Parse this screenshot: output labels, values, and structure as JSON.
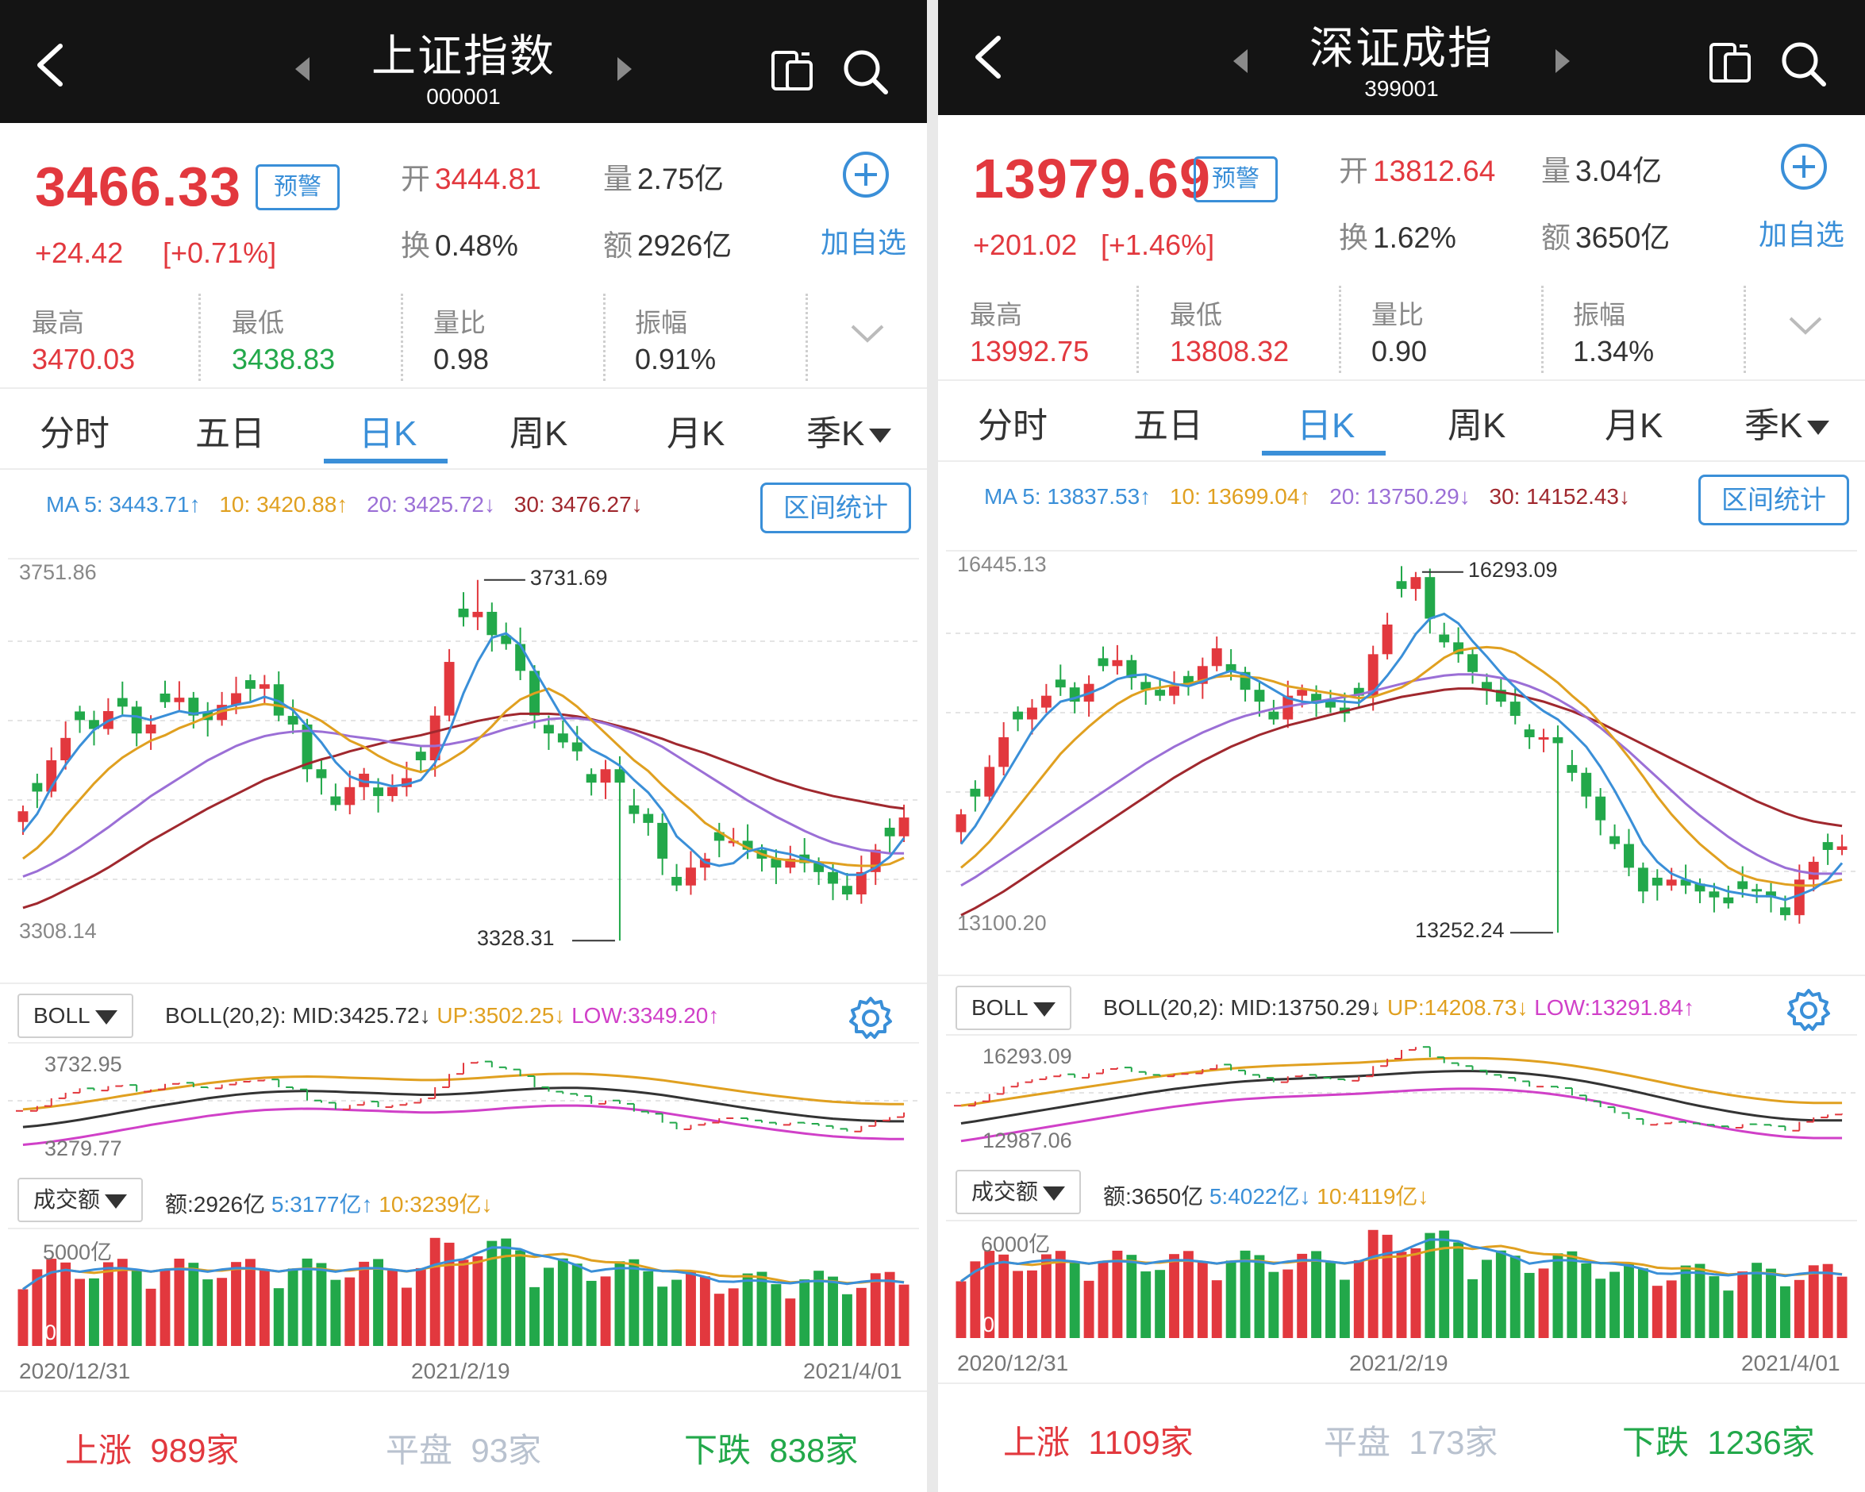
{
  "colors": {
    "up": "#e2383e",
    "down": "#22a84a",
    "accent": "#3a8fd8",
    "ma5": "#3a8fd8",
    "ma10": "#e0a020",
    "ma20": "#9b6fd6",
    "ma30": "#a0282e",
    "boll_mid": "#333333",
    "boll_up": "#e0a020",
    "boll_low": "#d040c8"
  },
  "panels": [
    {
      "title": "上证指数",
      "code": "000001",
      "price": "3466.33",
      "warn": "预警",
      "change": "+24.42",
      "change_pct": "[+0.71%]",
      "open_k": "开",
      "open_v": "3444.81",
      "vol_k": "量",
      "vol_v": "2.75亿",
      "turn_k": "换",
      "turn_v": "0.48%",
      "amt_k": "额",
      "amt_v": "2926亿",
      "add_label": "加自选",
      "stats": [
        {
          "k": "最高",
          "v": "3470.03",
          "c": "up"
        },
        {
          "k": "最低",
          "v": "3438.83",
          "c": "down"
        },
        {
          "k": "量比",
          "v": "0.98",
          "c": "n"
        },
        {
          "k": "振幅",
          "v": "0.91%",
          "c": "n"
        }
      ],
      "tabs": [
        "分时",
        "五日",
        "日K",
        "周K",
        "月K",
        "季K"
      ],
      "active_tab": 2,
      "ma": [
        "MA 5: 3443.71↑",
        "10: 3420.88↑",
        "20: 3425.72↓",
        "30: 3476.27↓"
      ],
      "range_btn": "区间统计",
      "y_top": "3751.86",
      "y_bottom": "3308.14",
      "high_label": "3731.69",
      "low_label": "3328.31",
      "boll_select": "BOLL",
      "boll_name": "BOLL(20,2):",
      "boll_mid": "MID:3425.72↓",
      "boll_up": "UP:3502.25↓",
      "boll_low": "LOW:3349.20↑",
      "boll_y_top": "3732.95",
      "boll_y_bottom": "3279.77",
      "vol_select": "成交额",
      "vol_amt": "额:2926亿",
      "vol_5": "5:3177亿↑",
      "vol_10": "10:3239亿↓",
      "vol_y_top": "5000亿",
      "vol_y_bottom": "0",
      "dates": [
        "2020/12/31",
        "2021/2/19",
        "2021/4/01"
      ],
      "up_label": "上涨",
      "up_count": "989家",
      "flat_label": "平盘",
      "flat_count": "93家",
      "down_label": "下跌",
      "down_count": "838家",
      "chart_data": {
        "type": "candlestick",
        "ylim": [
          3308.14,
          3751.86
        ],
        "high_mark": 3731.69,
        "low_mark": 3328.31,
        "closes": [
          3473,
          3495,
          3530,
          3555,
          3575,
          3565,
          3585,
          3590,
          3560,
          3570,
          3595,
          3600,
          3580,
          3575,
          3592,
          3605,
          3610,
          3615,
          3580,
          3570,
          3520,
          3510,
          3480,
          3500,
          3515,
          3490,
          3500,
          3510,
          3530,
          3580,
          3640,
          3690,
          3696,
          3670,
          3660,
          3630,
          3580,
          3560,
          3550,
          3540,
          3505,
          3520,
          3505,
          3470,
          3460,
          3420,
          3390,
          3410,
          3420,
          3440,
          3440,
          3430,
          3420,
          3410,
          3420,
          3415,
          3405,
          3392,
          3380,
          3405,
          3430,
          3445,
          3466
        ],
        "ma5": [
          3450,
          3470,
          3500,
          3525,
          3546,
          3564,
          3574,
          3580,
          3579,
          3575,
          3580,
          3585,
          3582,
          3584,
          3588,
          3592,
          3595,
          3601,
          3596,
          3586,
          3568,
          3550,
          3528,
          3512,
          3506,
          3505,
          3501,
          3503,
          3508,
          3527,
          3562,
          3605,
          3640,
          3667,
          3672,
          3659,
          3631,
          3604,
          3577,
          3557,
          3542,
          3534,
          3524,
          3508,
          3494,
          3474,
          3445,
          3431,
          3416,
          3412,
          3415,
          3428,
          3432,
          3428,
          3425,
          3420,
          3415,
          3408,
          3402,
          3402,
          3410,
          3422,
          3443
        ],
        "ma10": [
          3420,
          3432,
          3448,
          3468,
          3486,
          3504,
          3520,
          3533,
          3543,
          3552,
          3558,
          3566,
          3572,
          3579,
          3585,
          3588,
          3590,
          3593,
          3591,
          3588,
          3582,
          3574,
          3563,
          3552,
          3545,
          3535,
          3527,
          3521,
          3517,
          3521,
          3530,
          3540,
          3553,
          3568,
          3585,
          3598,
          3605,
          3610,
          3602,
          3590,
          3575,
          3560,
          3545,
          3530,
          3518,
          3502,
          3488,
          3475,
          3460,
          3450,
          3440,
          3432,
          3425,
          3420,
          3418,
          3417,
          3416,
          3415,
          3413,
          3412,
          3412,
          3414,
          3421
        ],
        "ma20": [
          3400,
          3406,
          3414,
          3423,
          3433,
          3444,
          3455,
          3467,
          3478,
          3490,
          3500,
          3510,
          3520,
          3530,
          3538,
          3546,
          3552,
          3557,
          3560,
          3562,
          3563,
          3562,
          3560,
          3557,
          3555,
          3553,
          3550,
          3548,
          3546,
          3546,
          3548,
          3551,
          3555,
          3560,
          3565,
          3569,
          3573,
          3576,
          3577,
          3577,
          3575,
          3571,
          3566,
          3560,
          3553,
          3545,
          3535,
          3525,
          3515,
          3505,
          3495,
          3485,
          3476,
          3467,
          3459,
          3451,
          3444,
          3438,
          3434,
          3430,
          3428,
          3426,
          3426
        ],
        "ma30": [
          3365,
          3370,
          3377,
          3385,
          3393,
          3401,
          3410,
          3420,
          3430,
          3440,
          3449,
          3458,
          3467,
          3476,
          3484,
          3492,
          3500,
          3508,
          3514,
          3520,
          3526,
          3531,
          3535,
          3540,
          3544,
          3548,
          3552,
          3555,
          3558,
          3562,
          3566,
          3570,
          3574,
          3577,
          3580,
          3582,
          3582,
          3582,
          3581,
          3579,
          3576,
          3572,
          3568,
          3564,
          3559,
          3554,
          3548,
          3543,
          3538,
          3532,
          3526,
          3520,
          3514,
          3508,
          3503,
          3498,
          3494,
          3490,
          3487,
          3484,
          3481,
          3478,
          3476
        ]
      }
    },
    {
      "title": "深证成指",
      "code": "399001",
      "price": "13979.69",
      "warn": "预警",
      "change": "+201.02",
      "change_pct": "[+1.46%]",
      "open_k": "开",
      "open_v": "13812.64",
      "vol_k": "量",
      "vol_v": "3.04亿",
      "turn_k": "换",
      "turn_v": "1.62%",
      "amt_k": "额",
      "amt_v": "3650亿",
      "add_label": "加自选",
      "stats": [
        {
          "k": "最高",
          "v": "13992.75",
          "c": "up"
        },
        {
          "k": "最低",
          "v": "13808.32",
          "c": "up"
        },
        {
          "k": "量比",
          "v": "0.90",
          "c": "n"
        },
        {
          "k": "振幅",
          "v": "1.34%",
          "c": "n"
        }
      ],
      "tabs": [
        "分时",
        "五日",
        "日K",
        "周K",
        "月K",
        "季K"
      ],
      "active_tab": 2,
      "ma": [
        "MA 5: 13837.53↑",
        "10: 13699.04↑",
        "20: 13750.29↓",
        "30: 14152.43↓"
      ],
      "range_btn": "区间统计",
      "y_top": "16445.13",
      "y_bottom": "13100.20",
      "high_label": "16293.09",
      "low_label": "13252.24",
      "boll_select": "BOLL",
      "boll_name": "BOLL(20,2):",
      "boll_mid": "MID:13750.29↓",
      "boll_up": "UP:14208.73↓",
      "boll_low": "LOW:13291.84↑",
      "boll_y_top": "16293.09",
      "boll_y_bottom": "12987.06",
      "vol_select": "成交额",
      "vol_amt": "额:3650亿",
      "vol_5": "5:4022亿↓",
      "vol_10": "10:4119亿↓",
      "vol_y_top": "6000亿",
      "vol_y_bottom": "0",
      "dates": [
        "2020/12/31",
        "2021/2/19",
        "2021/4/01"
      ],
      "up_label": "上涨",
      "up_count": "1109家",
      "flat_label": "平盘",
      "flat_count": "173家",
      "down_label": "下跌",
      "down_count": "1236家",
      "chart_data": {
        "type": "candlestick",
        "ylim": [
          13100.2,
          16445.13
        ],
        "high_mark": 16293.09,
        "low_mark": 13252.24,
        "closes": [
          14250,
          14400,
          14650,
          14900,
          15050,
          15150,
          15250,
          15320,
          15200,
          15350,
          15500,
          15550,
          15400,
          15300,
          15250,
          15330,
          15350,
          15500,
          15650,
          15450,
          15300,
          15200,
          15050,
          15250,
          15300,
          15200,
          15150,
          15100,
          15250,
          15600,
          15850,
          16150,
          16250,
          15900,
          15700,
          15600,
          15450,
          15300,
          15200,
          15080,
          14900,
          14900,
          14850,
          14600,
          14400,
          14200,
          14000,
          13800,
          13600,
          13650,
          13700,
          13650,
          13600,
          13550,
          13500,
          13620,
          13600,
          13550,
          13400,
          13700,
          13850,
          13950,
          13980
        ],
        "ma5": [
          14000,
          14150,
          14350,
          14550,
          14750,
          14950,
          15090,
          15200,
          15230,
          15270,
          15320,
          15390,
          15420,
          15430,
          15390,
          15350,
          15330,
          15370,
          15420,
          15460,
          15430,
          15370,
          15300,
          15230,
          15200,
          15190,
          15210,
          15200,
          15190,
          15280,
          15420,
          15580,
          15770,
          15900,
          15940,
          15860,
          15710,
          15580,
          15440,
          15320,
          15210,
          15120,
          15050,
          14940,
          14820,
          14650,
          14450,
          14230,
          14000,
          13850,
          13750,
          13700,
          13660,
          13640,
          13600,
          13580,
          13560,
          13560,
          13530,
          13570,
          13620,
          13700,
          13840
        ],
        "ma10": [
          13800,
          13900,
          14020,
          14160,
          14310,
          14460,
          14610,
          14760,
          14880,
          14990,
          15090,
          15180,
          15250,
          15300,
          15320,
          15340,
          15350,
          15380,
          15410,
          15420,
          15410,
          15400,
          15370,
          15330,
          15310,
          15290,
          15270,
          15250,
          15230,
          15240,
          15280,
          15320,
          15390,
          15480,
          15570,
          15630,
          15650,
          15660,
          15650,
          15610,
          15530,
          15450,
          15360,
          15250,
          15150,
          15020,
          14880,
          14730,
          14570,
          14400,
          14250,
          14120,
          14000,
          13900,
          13800,
          13740,
          13700,
          13680,
          13660,
          13650,
          13650,
          13670,
          13700
        ],
        "ma20": [
          13650,
          13720,
          13800,
          13880,
          13960,
          14040,
          14120,
          14200,
          14280,
          14360,
          14440,
          14520,
          14600,
          14680,
          14750,
          14820,
          14880,
          14940,
          14990,
          15040,
          15080,
          15110,
          15140,
          15160,
          15180,
          15200,
          15220,
          15240,
          15260,
          15290,
          15320,
          15350,
          15380,
          15400,
          15420,
          15430,
          15430,
          15420,
          15400,
          15370,
          15330,
          15280,
          15220,
          15150,
          15070,
          14980,
          14880,
          14780,
          14670,
          14560,
          14450,
          14340,
          14240,
          14150,
          14060,
          13980,
          13910,
          13850,
          13800,
          13770,
          13750,
          13750,
          13750
        ],
        "ma30": [
          13400,
          13460,
          13530,
          13600,
          13680,
          13760,
          13840,
          13920,
          14000,
          14080,
          14160,
          14240,
          14320,
          14400,
          14480,
          14560,
          14630,
          14700,
          14760,
          14820,
          14870,
          14920,
          14960,
          15000,
          15030,
          15060,
          15090,
          15120,
          15150,
          15180,
          15210,
          15240,
          15260,
          15280,
          15300,
          15310,
          15310,
          15300,
          15280,
          15260,
          15230,
          15200,
          15160,
          15120,
          15070,
          15020,
          14960,
          14900,
          14840,
          14780,
          14720,
          14660,
          14600,
          14540,
          14480,
          14420,
          14360,
          14310,
          14260,
          14220,
          14190,
          14170,
          14152
        ]
      }
    }
  ]
}
